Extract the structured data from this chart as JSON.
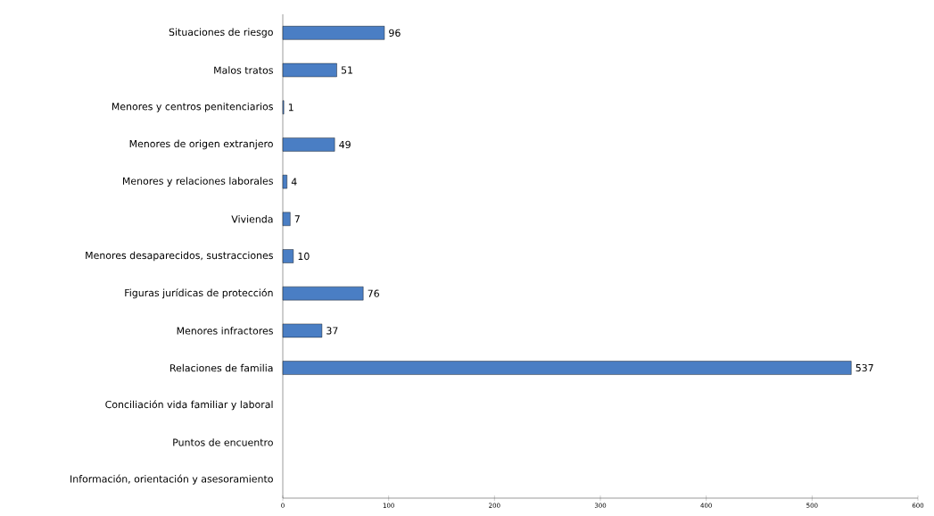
{
  "chart_data": {
    "type": "bar",
    "orientation": "horizontal",
    "categories": [
      "Situaciones de riesgo",
      "Malos tratos",
      "Menores y centros penitenciarios",
      "Menores de origen extranjero",
      "Menores y relaciones laborales",
      "Vivienda",
      "Menores desaparecidos, sustracciones",
      "Figuras jurídicas de protección",
      "Menores infractores",
      "Relaciones de familia",
      "Conciliación vida familiar y laboral",
      "Puntos de encuentro",
      "Información, orientación y asesoramiento"
    ],
    "values": [
      96,
      51,
      1,
      49,
      4,
      7,
      10,
      76,
      37,
      537,
      null,
      null,
      null
    ],
    "color": "#4a7ec4",
    "xlim": [
      0,
      600
    ],
    "xticks": [
      0,
      100,
      200,
      300,
      400,
      500,
      600
    ],
    "data_labels": true,
    "grid": false
  }
}
